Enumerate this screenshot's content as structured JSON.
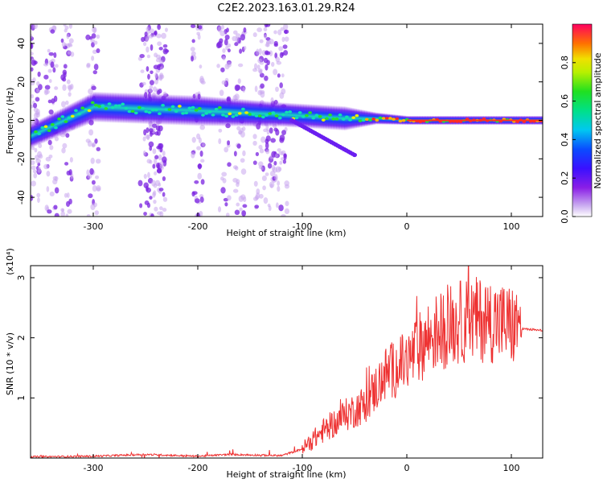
{
  "title": "C2E2.2023.163.01.29.R24",
  "chart_data": [
    {
      "type": "heatmap",
      "title": "",
      "xlabel": "Height of straight line (km)",
      "ylabel": "Frequency (Hz)",
      "xlim": [
        -360,
        130
      ],
      "ylim": [
        -50,
        50
      ],
      "x_ticks": [
        -300,
        -200,
        -100,
        0,
        100
      ],
      "y_ticks": [
        -40,
        -20,
        0,
        20,
        40
      ],
      "grid": false,
      "colormap": "rainbow (white → violet → blue → cyan → green → yellow → red)",
      "colorbar": {
        "label": "Normalized spectral amplitude",
        "range": [
          0,
          1
        ],
        "ticks": [
          "0.0",
          "0.2",
          "0.4",
          "0.6",
          "0.8"
        ]
      },
      "features": {
        "main_band": {
          "x": [
            -360,
            -300,
            -200,
            -120,
            -60,
            -30,
            0,
            130
          ],
          "center_hz": [
            -8,
            7,
            5,
            3,
            1,
            1,
            0,
            0
          ],
          "halfwidth_hz": [
            4,
            5,
            5,
            4,
            4,
            2,
            1.5,
            1.5
          ]
        },
        "branch": {
          "x": [
            -110,
            -70,
            -50
          ],
          "center_hz": [
            0,
            -12,
            -18
          ]
        },
        "vertical_streaks_x": [
          -355,
          -340,
          -325,
          -300,
          -250,
          -240,
          -235,
          -200,
          -175,
          -160,
          -140,
          -130,
          -120
        ]
      }
    },
    {
      "type": "line",
      "title": "",
      "xlabel": "Height of straight line (km)",
      "ylabel": "SNR (10 * v/v)",
      "y_multiplier_label": "(x10⁴)",
      "xlim": [
        -360,
        130
      ],
      "ylim": [
        0,
        3.2
      ],
      "x_ticks": [
        -300,
        -200,
        -100,
        0,
        100
      ],
      "y_ticks": [
        1,
        2,
        3
      ],
      "grid": false,
      "series": [
        {
          "color": "#ee3333",
          "x": [
            -360,
            -300,
            -250,
            -200,
            -170,
            -120,
            -100,
            -80,
            -60,
            -40,
            -20,
            0,
            20,
            40,
            60,
            80,
            100,
            110,
            130
          ],
          "y": [
            0.02,
            0.03,
            0.06,
            0.03,
            0.06,
            0.04,
            0.15,
            0.45,
            0.7,
            0.9,
            1.4,
            1.6,
            2.0,
            2.2,
            2.3,
            2.3,
            2.2,
            2.15,
            2.12
          ]
        }
      ]
    }
  ]
}
